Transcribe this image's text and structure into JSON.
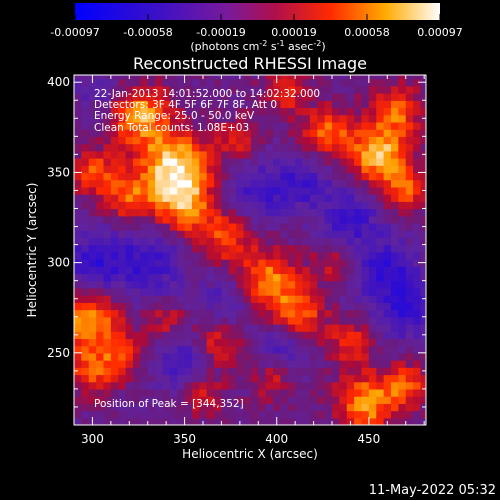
{
  "chart_data": {
    "type": "heatmap",
    "title": "Reconstructed RHESSI Image",
    "xlabel": "Heliocentric X (arcsec)",
    "ylabel": "Heliocentric Y (arcsec)",
    "xlim": [
      290,
      481
    ],
    "ylim": [
      210,
      404
    ],
    "xticks": [
      300,
      350,
      400,
      450
    ],
    "yticks": [
      250,
      300,
      350,
      400
    ],
    "colorbar": {
      "ticks": [
        "-0.00097",
        "-0.00058",
        "-0.00019",
        "0.00019",
        "0.00058",
        "0.00097"
      ],
      "unit_main": "(photons cm",
      "unit_sup1": "-2",
      "unit_mid1": " s",
      "unit_sup2": "-1",
      "unit_mid2": " asec",
      "unit_sup3": "-2",
      "unit_end": ")",
      "range": [
        -0.00097,
        0.00097
      ]
    },
    "annotations": [
      "22-Jan-2013 14:01:52.000 to 14:02:32.000",
      "Detectors: 3F 4F 5F 6F 7F 8F, Att 0",
      "Energy Range: 25.0 - 50.0 keV",
      "Clean    Total counts: 1.08E+03"
    ],
    "peak_label": "Position of Peak = [344,352]",
    "peak": [
      344,
      352
    ],
    "blobs": [
      {
        "x": 345,
        "y": 352,
        "v": 1.0,
        "r": 14
      },
      {
        "x": 325,
        "y": 382,
        "v": 0.75,
        "r": 12
      },
      {
        "x": 350,
        "y": 330,
        "v": 0.6,
        "r": 10
      },
      {
        "x": 302,
        "y": 350,
        "v": 0.55,
        "r": 9
      },
      {
        "x": 320,
        "y": 335,
        "v": 0.5,
        "r": 9
      },
      {
        "x": 372,
        "y": 315,
        "v": 0.55,
        "r": 10
      },
      {
        "x": 395,
        "y": 290,
        "v": 0.7,
        "r": 12
      },
      {
        "x": 412,
        "y": 270,
        "v": 0.65,
        "r": 10
      },
      {
        "x": 440,
        "y": 255,
        "v": 0.45,
        "r": 9
      },
      {
        "x": 428,
        "y": 372,
        "v": 0.6,
        "r": 10
      },
      {
        "x": 455,
        "y": 360,
        "v": 0.85,
        "r": 11
      },
      {
        "x": 470,
        "y": 340,
        "v": 0.55,
        "r": 9
      },
      {
        "x": 465,
        "y": 385,
        "v": 0.6,
        "r": 10
      },
      {
        "x": 298,
        "y": 268,
        "v": 0.8,
        "r": 12
      },
      {
        "x": 300,
        "y": 240,
        "v": 0.55,
        "r": 9
      },
      {
        "x": 318,
        "y": 248,
        "v": 0.45,
        "r": 8
      },
      {
        "x": 360,
        "y": 228,
        "v": 0.4,
        "r": 9
      },
      {
        "x": 398,
        "y": 235,
        "v": 0.35,
        "r": 8
      },
      {
        "x": 448,
        "y": 222,
        "v": 0.75,
        "r": 11
      },
      {
        "x": 470,
        "y": 232,
        "v": 0.55,
        "r": 9
      },
      {
        "x": 380,
        "y": 370,
        "v": 0.4,
        "r": 8
      },
      {
        "x": 405,
        "y": 395,
        "v": 0.45,
        "r": 9
      },
      {
        "x": 340,
        "y": 268,
        "v": 0.35,
        "r": 8
      },
      {
        "x": 368,
        "y": 255,
        "v": 0.45,
        "r": 9
      },
      {
        "x": 430,
        "y": 300,
        "v": 0.35,
        "r": 8
      },
      {
        "x": 330,
        "y": 300,
        "v": -0.45,
        "r": 14
      },
      {
        "x": 300,
        "y": 300,
        "v": -0.5,
        "r": 12
      },
      {
        "x": 390,
        "y": 340,
        "v": -0.4,
        "r": 12
      },
      {
        "x": 440,
        "y": 325,
        "v": -0.45,
        "r": 12
      },
      {
        "x": 460,
        "y": 295,
        "v": -0.55,
        "r": 12
      },
      {
        "x": 350,
        "y": 245,
        "v": -0.45,
        "r": 11
      },
      {
        "x": 405,
        "y": 255,
        "v": -0.4,
        "r": 10
      },
      {
        "x": 375,
        "y": 280,
        "v": -0.35,
        "r": 10
      },
      {
        "x": 415,
        "y": 345,
        "v": -0.4,
        "r": 10
      },
      {
        "x": 305,
        "y": 395,
        "v": -0.3,
        "r": 10
      },
      {
        "x": 470,
        "y": 272,
        "v": -0.45,
        "r": 10
      }
    ]
  },
  "footer": {
    "timestamp": "11-May-2022 05:32"
  }
}
